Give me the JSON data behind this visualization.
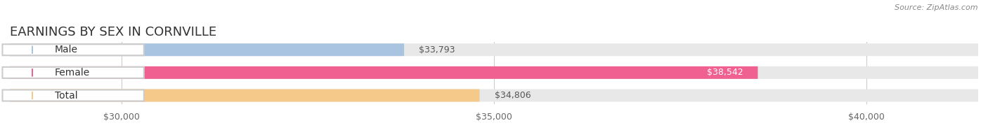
{
  "title": "EARNINGS BY SEX IN CORNVILLE",
  "source": "Source: ZipAtlas.com",
  "categories": [
    "Male",
    "Female",
    "Total"
  ],
  "values": [
    33793,
    38542,
    34806
  ],
  "bar_colors": [
    "#a8c4e0",
    "#f06090",
    "#f5c98a"
  ],
  "label_colors": [
    "#a8c4e0",
    "#f06090",
    "#f5c98a"
  ],
  "bar_bg_color": "#f0f0f0",
  "value_labels": [
    "$33,793",
    "$38,542",
    "$34,806"
  ],
  "xlim_min": 28500,
  "xlim_max": 41500,
  "x_ticks": [
    30000,
    35000,
    40000
  ],
  "x_tick_labels": [
    "$30,000",
    "$35,000",
    "$40,000"
  ],
  "title_fontsize": 13,
  "label_fontsize": 10,
  "value_fontsize": 9,
  "source_fontsize": 8,
  "fig_bg_color": "#ffffff",
  "bar_height": 0.55
}
